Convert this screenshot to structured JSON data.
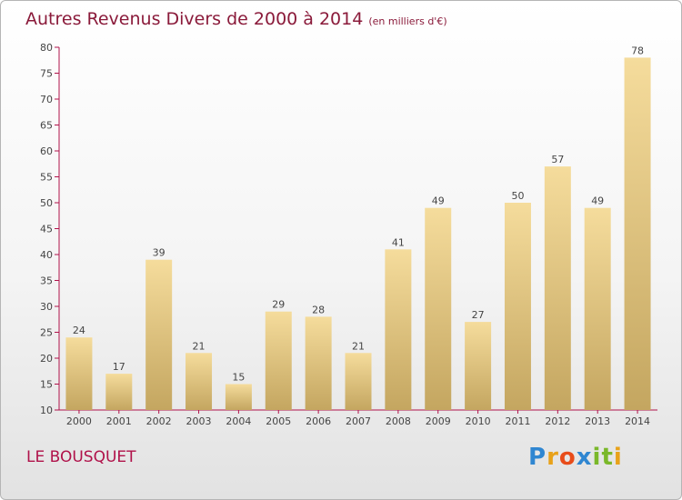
{
  "header": {
    "title": "Autres Revenus Divers de 2000 à 2014",
    "subtitle": "(en milliers d'€)"
  },
  "footer": {
    "commune": "LE BOUSQUET",
    "brand": "Proxiti"
  },
  "colors": {
    "title": "#8a1a3a",
    "commune": "#b0124a",
    "bar_top": "#f5dc9c",
    "bar_bottom": "#c4a660",
    "axis": "#b0124a"
  },
  "chart_data": {
    "type": "bar",
    "title": "Autres Revenus Divers de 2000 à 2014",
    "subtitle": "(en milliers d'€)",
    "xlabel": "",
    "ylabel": "",
    "ylim": [
      10,
      80
    ],
    "yticks": [
      10,
      15,
      20,
      25,
      30,
      35,
      40,
      45,
      50,
      55,
      60,
      65,
      70,
      75,
      80
    ],
    "grid": false,
    "categories": [
      "2000",
      "2001",
      "2002",
      "2003",
      "2004",
      "2005",
      "2006",
      "2007",
      "2008",
      "2009",
      "2010",
      "2011",
      "2012",
      "2013",
      "2014"
    ],
    "values": [
      24,
      17,
      39,
      21,
      15,
      29,
      28,
      21,
      41,
      49,
      27,
      50,
      57,
      49,
      78
    ]
  }
}
